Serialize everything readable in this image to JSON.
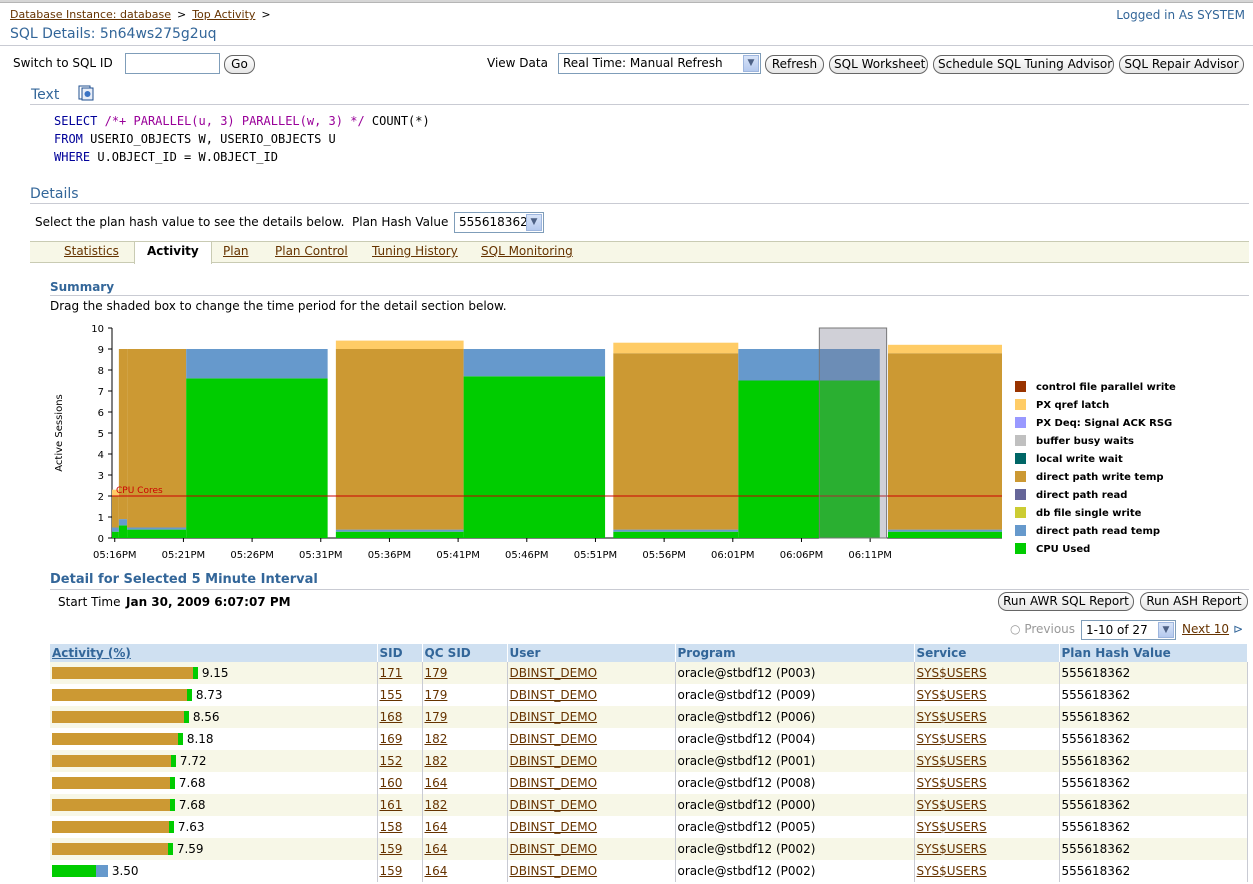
{
  "breadcrumb": {
    "item1": "Database Instance: database",
    "item2": "Top Activity",
    "sep": ">"
  },
  "logged_in": "Logged in As SYSTEM",
  "page_title": "SQL Details: 5n64ws275g2uq",
  "switch": {
    "label": "Switch to SQL ID",
    "value": "",
    "go": "Go"
  },
  "view_data": {
    "label": "View Data",
    "selected": "Real Time: Manual Refresh"
  },
  "toolbar": {
    "refresh": "Refresh",
    "sql_worksheet": "SQL Worksheet",
    "schedule": "Schedule SQL Tuning Advisor",
    "repair": "SQL Repair Advisor"
  },
  "text_section": {
    "title": "Text"
  },
  "sql": {
    "l1_kw": "SELECT",
    "l1_cm": "/*+ PARALLEL(u, 3) PARALLEL(w, 3) */",
    "l1_rest": "COUNT(*)",
    "l2_kw": "FROM",
    "l2_rest": "USERIO_OBJECTS W, USERIO_OBJECTS U",
    "l3_kw": "WHERE",
    "l3_rest": "U.OBJECT_ID = W.OBJECT_ID"
  },
  "details": {
    "title": "Details",
    "instruction": "Select the plan hash value to see the details below.",
    "phv_label": "Plan Hash Value",
    "phv_value": "555618362"
  },
  "tabs": [
    "Statistics",
    "Activity",
    "Plan",
    "Plan Control",
    "Tuning History",
    "SQL Monitoring"
  ],
  "summary": {
    "title": "Summary",
    "instruction": "Drag the shaded box to change the time period for the detail section below."
  },
  "chart_data": {
    "type": "area",
    "ylabel": "Active Sessions",
    "ylim": [
      0,
      10
    ],
    "yticks": [
      "0",
      "1",
      "2",
      "3",
      "4",
      "5",
      "6",
      "7",
      "8",
      "9",
      "10"
    ],
    "xticks": [
      "05:16PM",
      "05:21PM",
      "05:26PM",
      "05:31PM",
      "05:36PM",
      "05:41PM",
      "05:46PM",
      "05:51PM",
      "05:56PM",
      "06:01PM",
      "06:06PM",
      "06:11PM"
    ],
    "reference_line": {
      "label": "CPU Cores",
      "value": 2,
      "color": "#cc0000"
    },
    "legend": [
      {
        "name": "control file parallel write",
        "color": "#993300"
      },
      {
        "name": "PX qref latch",
        "color": "#ffcc66"
      },
      {
        "name": "PX Deq: Signal ACK RSG",
        "color": "#9999ff"
      },
      {
        "name": "buffer busy waits",
        "color": "#c0c0c0"
      },
      {
        "name": "local write wait",
        "color": "#006666"
      },
      {
        "name": "direct path write temp",
        "color": "#cc9933"
      },
      {
        "name": "direct path read",
        "color": "#666699"
      },
      {
        "name": "db file single write",
        "color": "#cccc33"
      },
      {
        "name": "direct path read temp",
        "color": "#6699cc"
      },
      {
        "name": "CPU Used",
        "color": "#00cc00"
      }
    ],
    "segments": [
      {
        "from": 0,
        "to": 0.5,
        "cpu": 0.3,
        "dprt": 0.2,
        "dpwt": 1.5,
        "qref": 0.3
      },
      {
        "from": 0.5,
        "to": 1.1,
        "cpu": 0.6,
        "dprt": 0.3,
        "dpwt": 8.1,
        "qref": 0
      },
      {
        "from": 1.1,
        "to": 5.4,
        "cpu": 0.4,
        "dprt": 0.1,
        "dpwt": 8.5,
        "qref": 0
      },
      {
        "from": 5.4,
        "to": 15.7,
        "cpu": 7.6,
        "dprt": 1.4,
        "dpwt": 0,
        "qref": 0
      },
      {
        "from": 16.3,
        "to": 25.6,
        "cpu": 0.3,
        "dprt": 0.1,
        "dpwt": 8.6,
        "qref": 0.4
      },
      {
        "from": 25.6,
        "to": 35.9,
        "cpu": 7.7,
        "dprt": 1.3,
        "dpwt": 0,
        "qref": 0
      },
      {
        "from": 36.5,
        "to": 45.6,
        "cpu": 0.3,
        "dprt": 0.1,
        "dpwt": 8.4,
        "qref": 0.5
      },
      {
        "from": 45.6,
        "to": 55.9,
        "cpu": 7.5,
        "dprt": 1.5,
        "dpwt": 0,
        "qref": 0
      },
      {
        "from": 56.5,
        "to": 64.8,
        "cpu": 0.3,
        "dprt": 0.1,
        "dpwt": 8.4,
        "qref": 0.4
      }
    ],
    "selection": {
      "from": 51.5,
      "to": 56.4
    }
  },
  "detail": {
    "title": "Detail for Selected 5 Minute Interval",
    "start_label": "Start Time",
    "start_value": "Jan 30, 2009 6:07:07 PM",
    "awr_button": "Run AWR SQL Report",
    "ash_button": "Run ASH Report",
    "pager": {
      "previous": "Previous",
      "range": "1-10 of 27",
      "next": "Next 10"
    },
    "columns": [
      "Activity (%)",
      "SID",
      "QC SID",
      "User",
      "Program",
      "Service",
      "Plan Hash Value"
    ],
    "rows": [
      {
        "activity": "9.15",
        "pct": 9.15,
        "sid": "171",
        "qc": "179",
        "user": "DBINST_DEMO",
        "program": "oracle@stbdf12 (P003)",
        "service": "SYS$USERS",
        "phv": "555618362"
      },
      {
        "activity": "8.73",
        "pct": 8.73,
        "sid": "155",
        "qc": "179",
        "user": "DBINST_DEMO",
        "program": "oracle@stbdf12 (P009)",
        "service": "SYS$USERS",
        "phv": "555618362"
      },
      {
        "activity": "8.56",
        "pct": 8.56,
        "sid": "168",
        "qc": "179",
        "user": "DBINST_DEMO",
        "program": "oracle@stbdf12 (P006)",
        "service": "SYS$USERS",
        "phv": "555618362"
      },
      {
        "activity": "8.18",
        "pct": 8.18,
        "sid": "169",
        "qc": "182",
        "user": "DBINST_DEMO",
        "program": "oracle@stbdf12 (P004)",
        "service": "SYS$USERS",
        "phv": "555618362"
      },
      {
        "activity": "7.72",
        "pct": 7.72,
        "sid": "152",
        "qc": "182",
        "user": "DBINST_DEMO",
        "program": "oracle@stbdf12 (P001)",
        "service": "SYS$USERS",
        "phv": "555618362"
      },
      {
        "activity": "7.68",
        "pct": 7.68,
        "sid": "160",
        "qc": "164",
        "user": "DBINST_DEMO",
        "program": "oracle@stbdf12 (P008)",
        "service": "SYS$USERS",
        "phv": "555618362"
      },
      {
        "activity": "7.68",
        "pct": 7.68,
        "sid": "161",
        "qc": "182",
        "user": "DBINST_DEMO",
        "program": "oracle@stbdf12 (P000)",
        "service": "SYS$USERS",
        "phv": "555618362"
      },
      {
        "activity": "7.63",
        "pct": 7.63,
        "sid": "158",
        "qc": "164",
        "user": "DBINST_DEMO",
        "program": "oracle@stbdf12 (P005)",
        "service": "SYS$USERS",
        "phv": "555618362"
      },
      {
        "activity": "7.59",
        "pct": 7.59,
        "sid": "159",
        "qc": "164",
        "user": "DBINST_DEMO",
        "program": "oracle@stbdf12 (P002)",
        "service": "SYS$USERS",
        "phv": "555618362"
      },
      {
        "activity": "3.50",
        "pct": 3.5,
        "sid": "159",
        "qc": "164",
        "user": "DBINST_DEMO",
        "program": "oracle@stbdf12 (P002)",
        "service": "SYS$USERS",
        "phv": "555618362",
        "cpu_only": true
      }
    ]
  }
}
